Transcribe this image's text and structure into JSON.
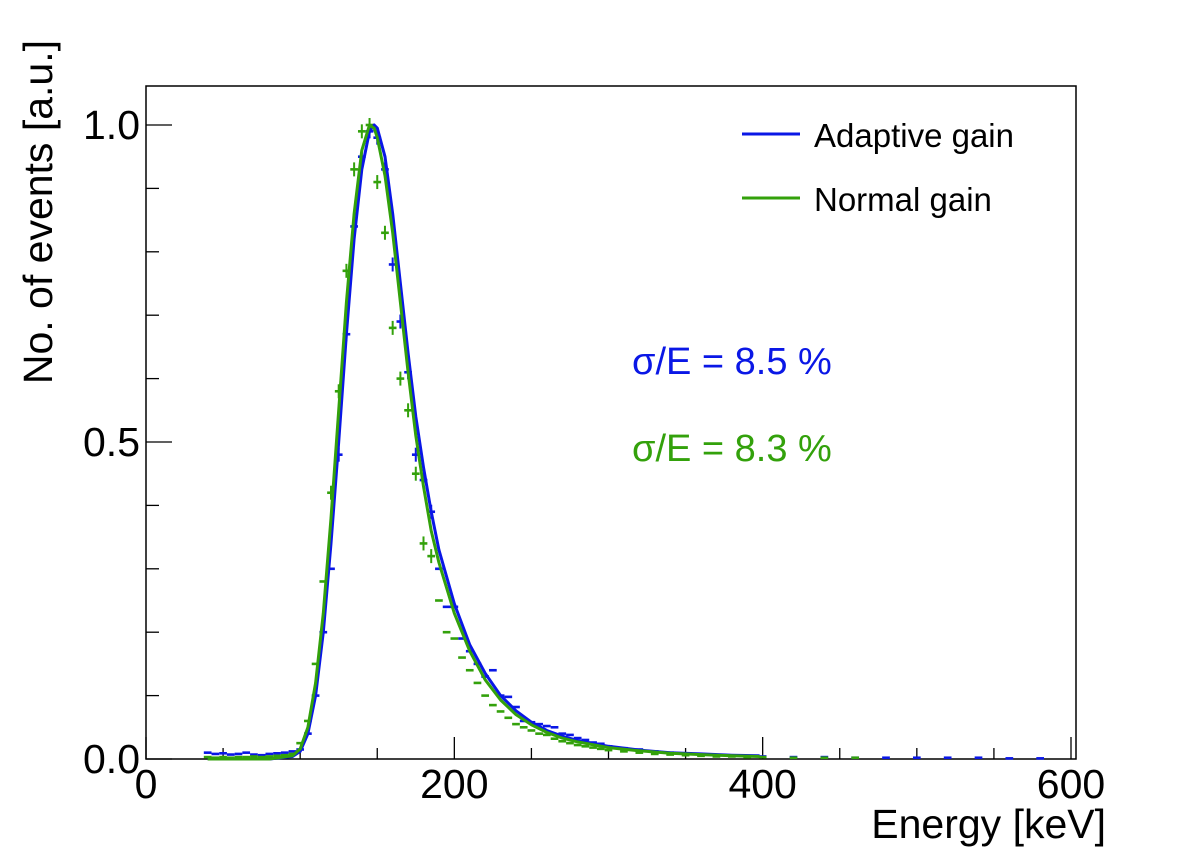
{
  "chart_data": {
    "type": "line",
    "title": "",
    "xlabel": "Energy [keV]",
    "ylabel": "No. of events [a.u.]",
    "xlim": [
      0,
      600
    ],
    "ylim": [
      0,
      1.05
    ],
    "x_ticks": [
      "0",
      "200",
      "400",
      "600"
    ],
    "x_tick_values": [
      0,
      200,
      400,
      600
    ],
    "y_ticks": [
      "0.0",
      "0.5",
      "1.0"
    ],
    "y_tick_values": [
      0.0,
      0.5,
      1.0
    ],
    "legend": {
      "position": "top-right"
    },
    "series": [
      {
        "name": "Adaptive gain",
        "color": "#0a17e6",
        "fit_x": [
          40,
          80,
          95,
          100,
          105,
          110,
          115,
          120,
          125,
          130,
          135,
          140,
          145,
          148,
          150,
          155,
          160,
          165,
          170,
          175,
          180,
          185,
          190,
          200,
          210,
          220,
          230,
          240,
          250,
          260,
          270,
          280,
          300,
          320,
          340,
          360,
          380,
          398
        ],
        "fit_y": [
          0.0,
          0.0,
          0.004,
          0.012,
          0.04,
          0.1,
          0.2,
          0.34,
          0.5,
          0.67,
          0.82,
          0.93,
          0.99,
          1.0,
          0.995,
          0.95,
          0.86,
          0.75,
          0.64,
          0.54,
          0.46,
          0.39,
          0.33,
          0.245,
          0.18,
          0.135,
          0.1,
          0.076,
          0.058,
          0.045,
          0.036,
          0.029,
          0.02,
          0.014,
          0.01,
          0.008,
          0.006,
          0.005
        ],
        "points_x": [
          40,
          45,
          50,
          55,
          60,
          65,
          70,
          75,
          80,
          85,
          90,
          95,
          100,
          105,
          110,
          115,
          120,
          125,
          130,
          135,
          140,
          145,
          150,
          155,
          160,
          165,
          170,
          175,
          180,
          185,
          190,
          195,
          200,
          205,
          210,
          215,
          220,
          225,
          230,
          235,
          240,
          245,
          250,
          255,
          260,
          265,
          270,
          275,
          280,
          285,
          290,
          295,
          300,
          310,
          320,
          330,
          340,
          350,
          360,
          370,
          380,
          390,
          400,
          420,
          440,
          460,
          480,
          500,
          520,
          540,
          560,
          580
        ],
        "points_y": [
          0.01,
          0.008,
          0.009,
          0.007,
          0.008,
          0.01,
          0.007,
          0.006,
          0.008,
          0.009,
          0.01,
          0.012,
          0.015,
          0.04,
          0.1,
          0.2,
          0.3,
          0.48,
          0.67,
          0.84,
          0.95,
          0.99,
          0.98,
          0.93,
          0.78,
          0.69,
          0.61,
          0.48,
          0.44,
          0.39,
          0.3,
          0.24,
          0.24,
          0.19,
          0.17,
          0.15,
          0.13,
          0.14,
          0.1,
          0.098,
          0.082,
          0.06,
          0.058,
          0.055,
          0.052,
          0.05,
          0.04,
          0.038,
          0.033,
          0.03,
          0.026,
          0.024,
          0.02,
          0.017,
          0.015,
          0.012,
          0.01,
          0.009,
          0.007,
          0.006,
          0.005,
          0.004,
          0.004,
          0.003,
          0.003,
          0.002,
          0.002,
          0.002,
          0.002,
          0.002,
          0.001,
          0.001
        ]
      },
      {
        "name": "Normal gain",
        "color": "#33a10b",
        "fit_x": [
          40,
          80,
          95,
          100,
          105,
          110,
          115,
          120,
          125,
          130,
          135,
          140,
          145,
          148,
          150,
          155,
          160,
          165,
          170,
          175,
          180,
          185,
          190,
          200,
          210,
          220,
          230,
          240,
          250,
          260,
          270,
          280,
          300,
          320,
          340,
          360,
          380,
          398
        ],
        "fit_y": [
          0.0,
          0.0,
          0.005,
          0.016,
          0.05,
          0.12,
          0.23,
          0.38,
          0.55,
          0.72,
          0.86,
          0.96,
          1.0,
          0.995,
          0.98,
          0.92,
          0.83,
          0.72,
          0.61,
          0.51,
          0.43,
          0.36,
          0.31,
          0.23,
          0.17,
          0.125,
          0.093,
          0.07,
          0.054,
          0.042,
          0.033,
          0.027,
          0.018,
          0.013,
          0.009,
          0.007,
          0.005,
          0.004
        ],
        "points_x": [
          40,
          45,
          50,
          55,
          60,
          65,
          70,
          75,
          80,
          85,
          90,
          95,
          100,
          105,
          110,
          115,
          120,
          125,
          130,
          135,
          140,
          145,
          150,
          155,
          160,
          165,
          170,
          175,
          180,
          185,
          190,
          195,
          200,
          205,
          210,
          215,
          220,
          225,
          230,
          235,
          240,
          245,
          250,
          255,
          260,
          265,
          270,
          275,
          280,
          285,
          290,
          295,
          300,
          310,
          320,
          330,
          340,
          350,
          360,
          370,
          380,
          390,
          400,
          420,
          440,
          460
        ],
        "points_y": [
          0.003,
          0.002,
          0.003,
          0.002,
          0.003,
          0.003,
          0.004,
          0.003,
          0.004,
          0.005,
          0.006,
          0.008,
          0.025,
          0.06,
          0.15,
          0.28,
          0.42,
          0.58,
          0.77,
          0.93,
          0.99,
          1.0,
          0.91,
          0.83,
          0.68,
          0.6,
          0.55,
          0.45,
          0.34,
          0.32,
          0.25,
          0.2,
          0.19,
          0.16,
          0.14,
          0.12,
          0.1,
          0.085,
          0.075,
          0.065,
          0.055,
          0.05,
          0.045,
          0.04,
          0.038,
          0.032,
          0.028,
          0.025,
          0.022,
          0.02,
          0.018,
          0.016,
          0.014,
          0.012,
          0.01,
          0.008,
          0.007,
          0.006,
          0.005,
          0.004,
          0.004,
          0.003,
          0.003,
          0.002,
          0.002,
          0.002
        ]
      }
    ],
    "annotations": [
      {
        "text": "σ/E = 8.5 %",
        "color": "#0a17e6"
      },
      {
        "text": "σ/E = 8.3 %",
        "color": "#33a10b"
      }
    ]
  }
}
